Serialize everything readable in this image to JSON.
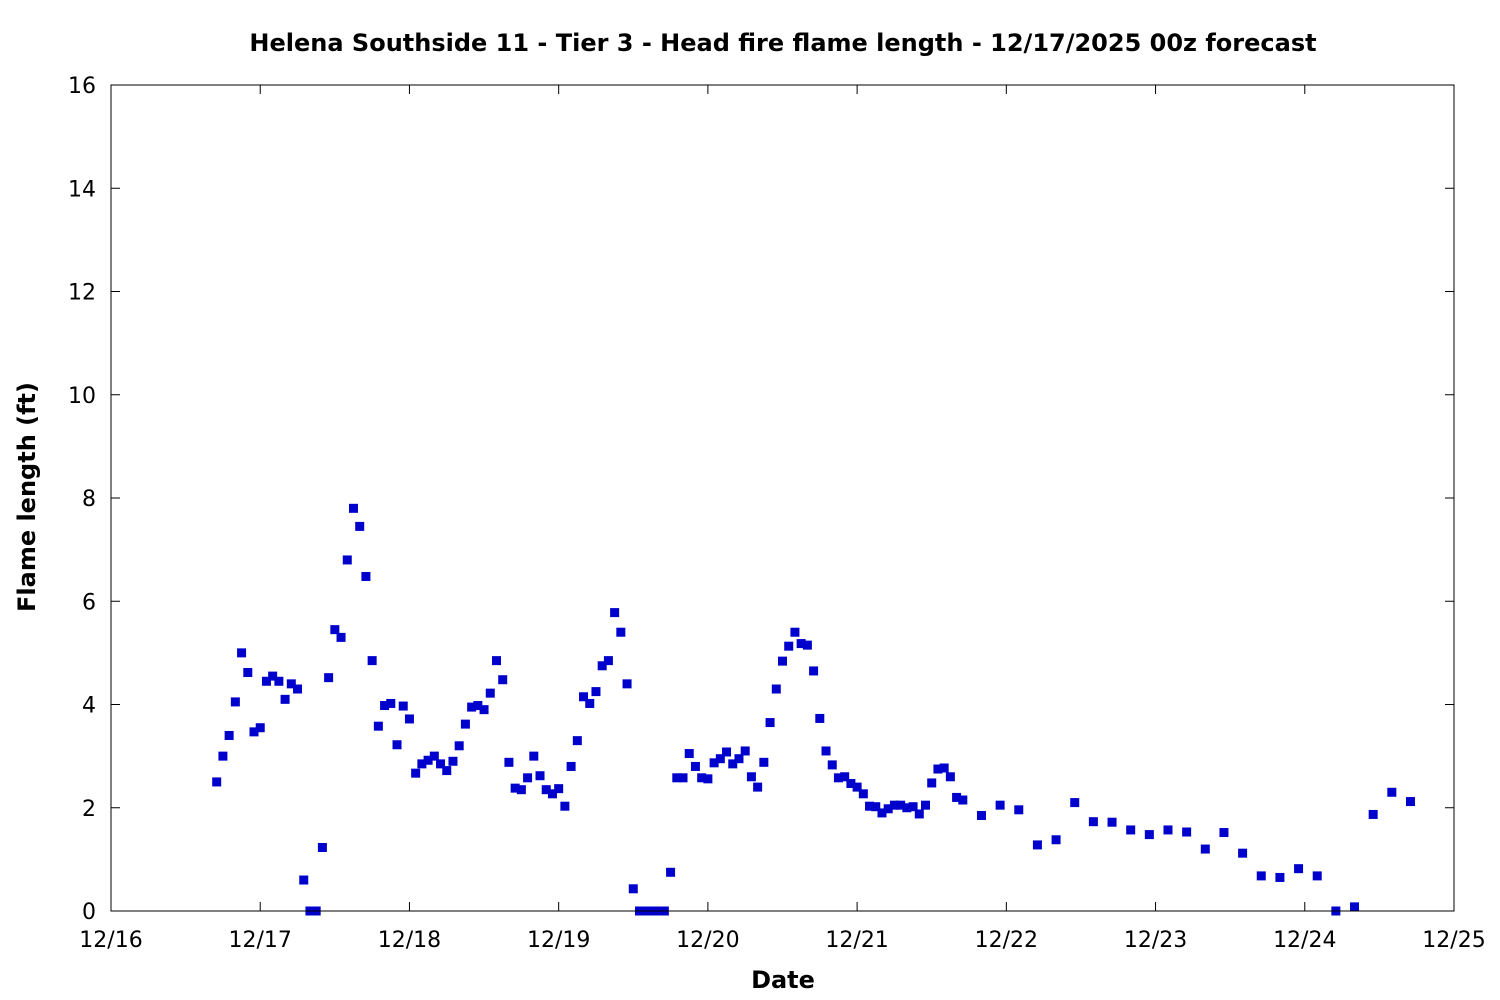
{
  "chart_data": {
    "type": "scatter",
    "title": "Helena Southside 11 - Tier 3 - Head fire flame length - 12/17/2025 00z forecast",
    "xlabel": "Date",
    "ylabel": "Flame length (ft)",
    "xlim": [
      "2025-12-16 00:00",
      "2025-12-25 00:00"
    ],
    "ylim": [
      0,
      16
    ],
    "grid": false,
    "legend": "none",
    "marker_color": "#0000cc",
    "x_ticks": [
      "12/16",
      "12/17",
      "12/18",
      "12/19",
      "12/20",
      "12/21",
      "12/22",
      "12/23",
      "12/24",
      "12/25"
    ],
    "y_ticks": [
      "0",
      "2",
      "4",
      "6",
      "8",
      "10",
      "12",
      "14",
      "16"
    ],
    "series": [
      {
        "points": [
          [
            "2025-12-16 17:00",
            2.5
          ],
          [
            "2025-12-16 18:00",
            3.0
          ],
          [
            "2025-12-16 19:00",
            3.4
          ],
          [
            "2025-12-16 20:00",
            4.05
          ],
          [
            "2025-12-16 21:00",
            5.0
          ],
          [
            "2025-12-16 22:00",
            4.62
          ],
          [
            "2025-12-16 23:00",
            3.47
          ],
          [
            "2025-12-17 00:00",
            3.55
          ],
          [
            "2025-12-17 01:00",
            4.45
          ],
          [
            "2025-12-17 02:00",
            4.55
          ],
          [
            "2025-12-17 03:00",
            4.45
          ],
          [
            "2025-12-17 04:00",
            4.1
          ],
          [
            "2025-12-17 05:00",
            4.4
          ],
          [
            "2025-12-17 06:00",
            4.3
          ],
          [
            "2025-12-17 07:00",
            0.6
          ],
          [
            "2025-12-17 08:00",
            0.0
          ],
          [
            "2025-12-17 09:00",
            0.0
          ],
          [
            "2025-12-17 10:00",
            1.23
          ],
          [
            "2025-12-17 11:00",
            4.52
          ],
          [
            "2025-12-17 12:00",
            5.45
          ],
          [
            "2025-12-17 13:00",
            5.3
          ],
          [
            "2025-12-17 14:00",
            6.8
          ],
          [
            "2025-12-17 15:00",
            7.8
          ],
          [
            "2025-12-17 16:00",
            7.45
          ],
          [
            "2025-12-17 17:00",
            6.48
          ],
          [
            "2025-12-17 18:00",
            4.85
          ],
          [
            "2025-12-17 19:00",
            3.58
          ],
          [
            "2025-12-17 20:00",
            3.98
          ],
          [
            "2025-12-17 21:00",
            4.02
          ],
          [
            "2025-12-17 22:00",
            3.22
          ],
          [
            "2025-12-17 23:00",
            3.97
          ],
          [
            "2025-12-18 00:00",
            3.72
          ],
          [
            "2025-12-18 01:00",
            2.67
          ],
          [
            "2025-12-18 02:00",
            2.85
          ],
          [
            "2025-12-18 03:00",
            2.92
          ],
          [
            "2025-12-18 04:00",
            3.0
          ],
          [
            "2025-12-18 05:00",
            2.85
          ],
          [
            "2025-12-18 06:00",
            2.72
          ],
          [
            "2025-12-18 07:00",
            2.9
          ],
          [
            "2025-12-18 08:00",
            3.2
          ],
          [
            "2025-12-18 09:00",
            3.62
          ],
          [
            "2025-12-18 10:00",
            3.95
          ],
          [
            "2025-12-18 11:00",
            3.98
          ],
          [
            "2025-12-18 12:00",
            3.9
          ],
          [
            "2025-12-18 13:00",
            4.22
          ],
          [
            "2025-12-18 14:00",
            4.85
          ],
          [
            "2025-12-18 15:00",
            4.48
          ],
          [
            "2025-12-18 16:00",
            2.88
          ],
          [
            "2025-12-18 17:00",
            2.38
          ],
          [
            "2025-12-18 18:00",
            2.35
          ],
          [
            "2025-12-18 19:00",
            2.58
          ],
          [
            "2025-12-18 20:00",
            3.0
          ],
          [
            "2025-12-18 21:00",
            2.62
          ],
          [
            "2025-12-18 22:00",
            2.35
          ],
          [
            "2025-12-18 23:00",
            2.27
          ],
          [
            "2025-12-19 00:00",
            2.37
          ],
          [
            "2025-12-19 01:00",
            2.03
          ],
          [
            "2025-12-19 02:00",
            2.8
          ],
          [
            "2025-12-19 03:00",
            3.3
          ],
          [
            "2025-12-19 04:00",
            4.15
          ],
          [
            "2025-12-19 05:00",
            4.02
          ],
          [
            "2025-12-19 06:00",
            4.25
          ],
          [
            "2025-12-19 07:00",
            4.75
          ],
          [
            "2025-12-19 08:00",
            4.85
          ],
          [
            "2025-12-19 09:00",
            5.78
          ],
          [
            "2025-12-19 10:00",
            5.4
          ],
          [
            "2025-12-19 11:00",
            4.4
          ],
          [
            "2025-12-19 12:00",
            0.43
          ],
          [
            "2025-12-19 13:00",
            0.0
          ],
          [
            "2025-12-19 14:00",
            0.0
          ],
          [
            "2025-12-19 15:00",
            0.0
          ],
          [
            "2025-12-19 16:00",
            0.0
          ],
          [
            "2025-12-19 17:00",
            0.0
          ],
          [
            "2025-12-19 18:00",
            0.75
          ],
          [
            "2025-12-19 19:00",
            2.58
          ],
          [
            "2025-12-19 20:00",
            2.58
          ],
          [
            "2025-12-19 21:00",
            3.05
          ],
          [
            "2025-12-19 22:00",
            2.8
          ],
          [
            "2025-12-19 23:00",
            2.58
          ],
          [
            "2025-12-20 00:00",
            2.56
          ],
          [
            "2025-12-20 01:00",
            2.87
          ],
          [
            "2025-12-20 02:00",
            2.95
          ],
          [
            "2025-12-20 03:00",
            3.08
          ],
          [
            "2025-12-20 04:00",
            2.85
          ],
          [
            "2025-12-20 05:00",
            2.95
          ],
          [
            "2025-12-20 06:00",
            3.1
          ],
          [
            "2025-12-20 07:00",
            2.6
          ],
          [
            "2025-12-20 08:00",
            2.4
          ],
          [
            "2025-12-20 09:00",
            2.88
          ],
          [
            "2025-12-20 10:00",
            3.65
          ],
          [
            "2025-12-20 11:00",
            4.3
          ],
          [
            "2025-12-20 12:00",
            4.84
          ],
          [
            "2025-12-20 13:00",
            5.13
          ],
          [
            "2025-12-20 14:00",
            5.4
          ],
          [
            "2025-12-20 15:00",
            5.18
          ],
          [
            "2025-12-20 16:00",
            5.15
          ],
          [
            "2025-12-20 17:00",
            4.65
          ],
          [
            "2025-12-20 18:00",
            3.73
          ],
          [
            "2025-12-20 19:00",
            3.1
          ],
          [
            "2025-12-20 20:00",
            2.83
          ],
          [
            "2025-12-20 21:00",
            2.58
          ],
          [
            "2025-12-20 22:00",
            2.6
          ],
          [
            "2025-12-20 23:00",
            2.47
          ],
          [
            "2025-12-21 00:00",
            2.4
          ],
          [
            "2025-12-21 01:00",
            2.27
          ],
          [
            "2025-12-21 02:00",
            2.03
          ],
          [
            "2025-12-21 03:00",
            2.02
          ],
          [
            "2025-12-21 04:00",
            1.9
          ],
          [
            "2025-12-21 05:00",
            1.98
          ],
          [
            "2025-12-21 06:00",
            2.05
          ],
          [
            "2025-12-21 07:00",
            2.05
          ],
          [
            "2025-12-21 08:00",
            2.0
          ],
          [
            "2025-12-21 09:00",
            2.02
          ],
          [
            "2025-12-21 10:00",
            1.88
          ],
          [
            "2025-12-21 11:00",
            2.05
          ],
          [
            "2025-12-21 12:00",
            2.48
          ],
          [
            "2025-12-21 13:00",
            2.75
          ],
          [
            "2025-12-21 14:00",
            2.77
          ],
          [
            "2025-12-21 15:00",
            2.6
          ],
          [
            "2025-12-21 16:00",
            2.2
          ],
          [
            "2025-12-21 17:00",
            2.15
          ],
          [
            "2025-12-21 20:00",
            1.85
          ],
          [
            "2025-12-21 23:00",
            2.05
          ],
          [
            "2025-12-22 02:00",
            1.96
          ],
          [
            "2025-12-22 05:00",
            1.28
          ],
          [
            "2025-12-22 08:00",
            1.38
          ],
          [
            "2025-12-22 11:00",
            2.1
          ],
          [
            "2025-12-22 14:00",
            1.73
          ],
          [
            "2025-12-22 17:00",
            1.72
          ],
          [
            "2025-12-22 20:00",
            1.57
          ],
          [
            "2025-12-22 23:00",
            1.48
          ],
          [
            "2025-12-23 02:00",
            1.57
          ],
          [
            "2025-12-23 05:00",
            1.53
          ],
          [
            "2025-12-23 08:00",
            1.2
          ],
          [
            "2025-12-23 11:00",
            1.52
          ],
          [
            "2025-12-23 14:00",
            1.12
          ],
          [
            "2025-12-23 17:00",
            0.68
          ],
          [
            "2025-12-23 20:00",
            0.65
          ],
          [
            "2025-12-23 23:00",
            0.82
          ],
          [
            "2025-12-24 02:00",
            0.68
          ],
          [
            "2025-12-24 05:00",
            0.0
          ],
          [
            "2025-12-24 08:00",
            0.08
          ],
          [
            "2025-12-24 11:00",
            1.87
          ],
          [
            "2025-12-24 14:00",
            2.3
          ],
          [
            "2025-12-24 17:00",
            2.12
          ]
        ]
      }
    ]
  }
}
